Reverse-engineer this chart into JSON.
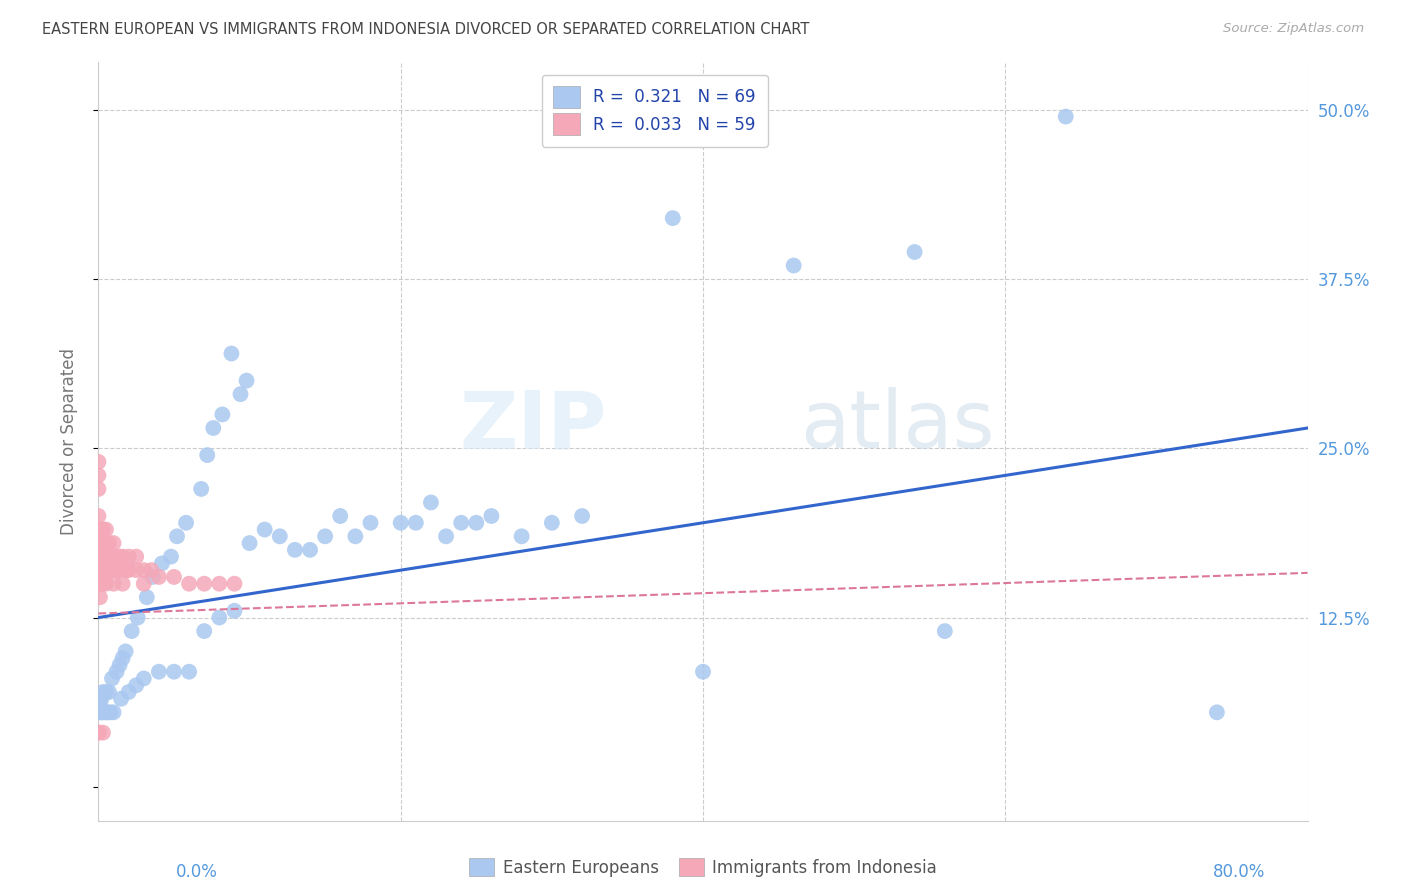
{
  "title": "EASTERN EUROPEAN VS IMMIGRANTS FROM INDONESIA DIVORCED OR SEPARATED CORRELATION CHART",
  "source": "Source: ZipAtlas.com",
  "ylabel": "Divorced or Separated",
  "xmin": 0.0,
  "xmax": 0.8,
  "ymin": -0.025,
  "ymax": 0.535,
  "watermark_zip": "ZIP",
  "watermark_atlas": "atlas",
  "legend_r1": "R =  0.321   N = 69",
  "legend_r2": "R =  0.033   N = 59",
  "color_eastern": "#aac8f0",
  "color_indonesia": "#f4a8b8",
  "trendline_eastern_color": "#3366cc",
  "trendline_indonesia_color": "#dd7799",
  "background_color": "#ffffff",
  "grid_color": "#cccccc",
  "title_color": "#444444",
  "axis_label_color": "#5599dd",
  "right_ytick_color": "#5599dd",
  "trendline_east_x0": 0.0,
  "trendline_east_x1": 0.8,
  "trendline_east_y0": 0.125,
  "trendline_east_y1": 0.265,
  "trendline_indo_x0": 0.0,
  "trendline_indo_x1": 0.8,
  "trendline_indo_y0": 0.128,
  "trendline_indo_y1": 0.158,
  "eastern_x": [
    0.64,
    0.54,
    0.46,
    0.56,
    0.4,
    0.38,
    0.32,
    0.3,
    0.28,
    0.26,
    0.24,
    0.22,
    0.2,
    0.18,
    0.17,
    0.16,
    0.15,
    0.14,
    0.13,
    0.12,
    0.11,
    0.1,
    0.09,
    0.08,
    0.07,
    0.06,
    0.05,
    0.04,
    0.03,
    0.025,
    0.02,
    0.015,
    0.01,
    0.008,
    0.006,
    0.005,
    0.003,
    0.002,
    0.001,
    0.001,
    0.001,
    0.002,
    0.003,
    0.005,
    0.007,
    0.009,
    0.012,
    0.014,
    0.016,
    0.018,
    0.022,
    0.026,
    0.032,
    0.036,
    0.042,
    0.048,
    0.052,
    0.058,
    0.068,
    0.072,
    0.076,
    0.082,
    0.088,
    0.094,
    0.098,
    0.21,
    0.23,
    0.25,
    0.74
  ],
  "eastern_y": [
    0.495,
    0.395,
    0.385,
    0.115,
    0.085,
    0.42,
    0.2,
    0.195,
    0.185,
    0.2,
    0.195,
    0.21,
    0.195,
    0.195,
    0.185,
    0.2,
    0.185,
    0.175,
    0.175,
    0.185,
    0.19,
    0.18,
    0.13,
    0.125,
    0.115,
    0.085,
    0.085,
    0.085,
    0.08,
    0.075,
    0.07,
    0.065,
    0.055,
    0.055,
    0.055,
    0.055,
    0.055,
    0.055,
    0.055,
    0.06,
    0.065,
    0.065,
    0.07,
    0.07,
    0.07,
    0.08,
    0.085,
    0.09,
    0.095,
    0.1,
    0.115,
    0.125,
    0.14,
    0.155,
    0.165,
    0.17,
    0.185,
    0.195,
    0.22,
    0.245,
    0.265,
    0.275,
    0.32,
    0.29,
    0.3,
    0.195,
    0.185,
    0.195,
    0.055
  ],
  "indonesia_x": [
    0.0,
    0.0,
    0.0,
    0.0,
    0.0,
    0.0,
    0.0,
    0.0,
    0.001,
    0.001,
    0.001,
    0.001,
    0.001,
    0.002,
    0.002,
    0.002,
    0.002,
    0.003,
    0.003,
    0.003,
    0.004,
    0.004,
    0.005,
    0.005,
    0.005,
    0.005,
    0.005,
    0.006,
    0.006,
    0.007,
    0.007,
    0.008,
    0.008,
    0.009,
    0.009,
    0.01,
    0.01,
    0.01,
    0.012,
    0.012,
    0.014,
    0.014,
    0.016,
    0.016,
    0.018,
    0.02,
    0.02,
    0.025,
    0.025,
    0.03,
    0.03,
    0.035,
    0.04,
    0.05,
    0.06,
    0.07,
    0.08,
    0.09,
    0.003
  ],
  "indonesia_y": [
    0.24,
    0.23,
    0.22,
    0.2,
    0.19,
    0.18,
    0.04,
    0.04,
    0.18,
    0.17,
    0.16,
    0.15,
    0.14,
    0.19,
    0.17,
    0.16,
    0.15,
    0.19,
    0.17,
    0.16,
    0.18,
    0.17,
    0.19,
    0.18,
    0.17,
    0.16,
    0.15,
    0.18,
    0.17,
    0.18,
    0.17,
    0.17,
    0.16,
    0.17,
    0.16,
    0.18,
    0.17,
    0.15,
    0.17,
    0.16,
    0.17,
    0.16,
    0.17,
    0.15,
    0.16,
    0.17,
    0.16,
    0.17,
    0.16,
    0.16,
    0.15,
    0.16,
    0.155,
    0.155,
    0.15,
    0.15,
    0.15,
    0.15,
    0.04
  ]
}
